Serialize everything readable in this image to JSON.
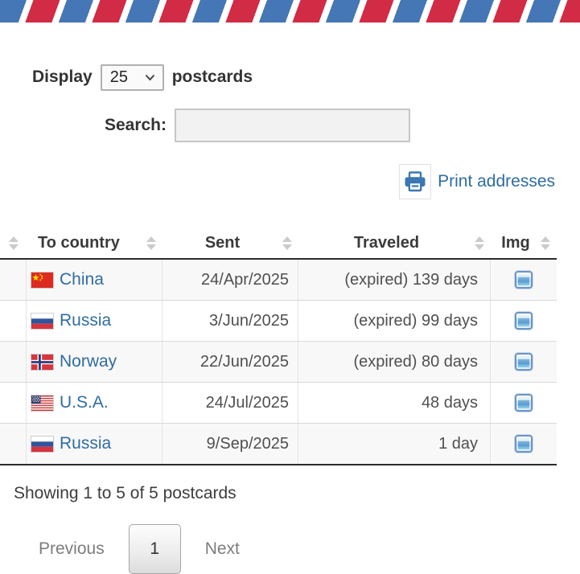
{
  "display_control": {
    "label_before": "Display",
    "selected_option": "25",
    "label_after": "postcards"
  },
  "search": {
    "label": "Search:",
    "value": "",
    "placeholder": ""
  },
  "print_link": {
    "label": "Print addresses"
  },
  "table": {
    "headers": [
      {
        "label": ""
      },
      {
        "label": "To country"
      },
      {
        "label": "Sent"
      },
      {
        "label": "Traveled"
      },
      {
        "label": "Img"
      }
    ],
    "rows": [
      {
        "country": "China",
        "flag": "cn",
        "sent": "24/Apr/2025",
        "traveled": "(expired) 139 days"
      },
      {
        "country": "Russia",
        "flag": "ru",
        "sent": "3/Jun/2025",
        "traveled": "(expired) 99 days"
      },
      {
        "country": "Norway",
        "flag": "no",
        "sent": "22/Jun/2025",
        "traveled": "(expired) 80 days"
      },
      {
        "country": "U.S.A.",
        "flag": "us",
        "sent": "24/Jul/2025",
        "traveled": "48 days"
      },
      {
        "country": "Russia",
        "flag": "ru",
        "sent": "9/Sep/2025",
        "traveled": "1 day"
      }
    ]
  },
  "footer": {
    "summary": "Showing 1 to 5 of 5 postcards"
  },
  "pagination": {
    "previous": "Previous",
    "current_page": "1",
    "next": "Next"
  },
  "colors": {
    "stripe_red": "#d22b45",
    "stripe_blue": "#4576b5",
    "link_blue": "#2f6ca3",
    "header_text": "#3a3a3a",
    "row_stripe": "#f8f8f8"
  }
}
